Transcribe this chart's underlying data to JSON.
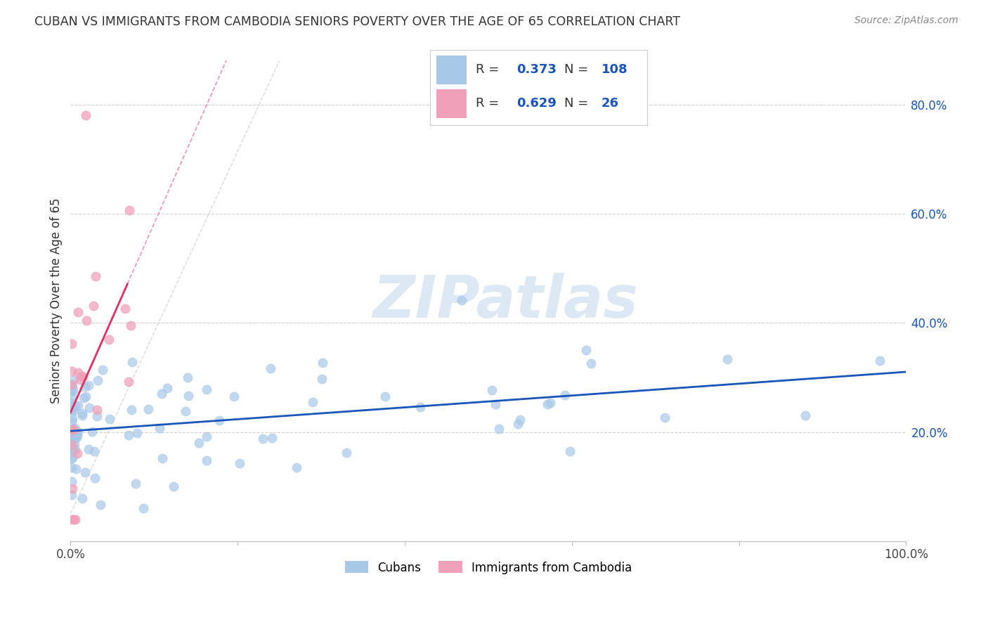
{
  "title": "CUBAN VS IMMIGRANTS FROM CAMBODIA SENIORS POVERTY OVER THE AGE OF 65 CORRELATION CHART",
  "source": "Source: ZipAtlas.com",
  "ylabel": "Seniors Poverty Over the Age of 65",
  "xlim": [
    0,
    1.0
  ],
  "ylim": [
    0,
    0.88
  ],
  "xticks": [
    0.0,
    0.2,
    0.4,
    0.6,
    0.8,
    1.0
  ],
  "xticklabels": [
    "0.0%",
    "",
    "",
    "",
    "",
    "100.0%"
  ],
  "ytick_right_vals": [
    0.2,
    0.4,
    0.6,
    0.8
  ],
  "ytick_right_labels": [
    "20.0%",
    "40.0%",
    "60.0%",
    "80.0%"
  ],
  "cuban_color": "#a8c8e8",
  "cambodia_color": "#f0a0b8",
  "cuban_line_color": "#1a55bb",
  "cambodia_line_color": "#e03060",
  "diagonal_color": "#d0d0d0",
  "cuban_R": "0.373",
  "cuban_N": "108",
  "cambodia_R": "0.629",
  "cambodia_N": "26",
  "legend_text_color": "#000000",
  "legend_value_color": "#1a55bb",
  "watermark_text": "ZIPatlas",
  "watermark_color": "#dde8f5",
  "grid_color": "#cccccc",
  "title_color": "#333333",
  "source_color": "#888888",
  "ylabel_color": "#333333"
}
